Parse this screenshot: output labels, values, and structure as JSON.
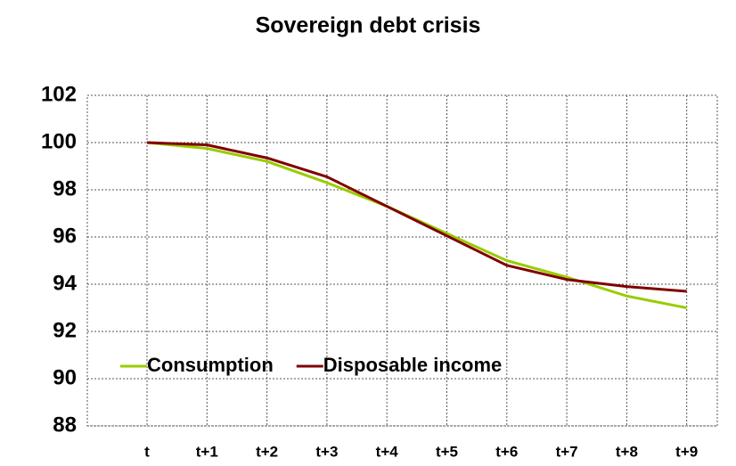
{
  "chart_data": {
    "type": "line",
    "title": "Sovereign debt crisis",
    "categories": [
      "t",
      "t+1",
      "t+2",
      "t+3",
      "t+4",
      "t+5",
      "t+6",
      "t+7",
      "t+8",
      "t+9"
    ],
    "series": [
      {
        "name": "Consumption",
        "color": "#99cc00",
        "values": [
          100,
          99.75,
          99.2,
          98.3,
          97.3,
          96.15,
          95.0,
          94.3,
          93.5,
          93.0
        ]
      },
      {
        "name": "Disposable income",
        "color": "#800000",
        "values": [
          100,
          99.9,
          99.35,
          98.55,
          97.3,
          96.05,
          94.8,
          94.2,
          93.9,
          93.7
        ]
      }
    ],
    "ylim": [
      88,
      102
    ],
    "yticks": [
      88,
      90,
      92,
      94,
      96,
      98,
      100,
      102
    ],
    "grid": true,
    "legend": "lower left"
  }
}
